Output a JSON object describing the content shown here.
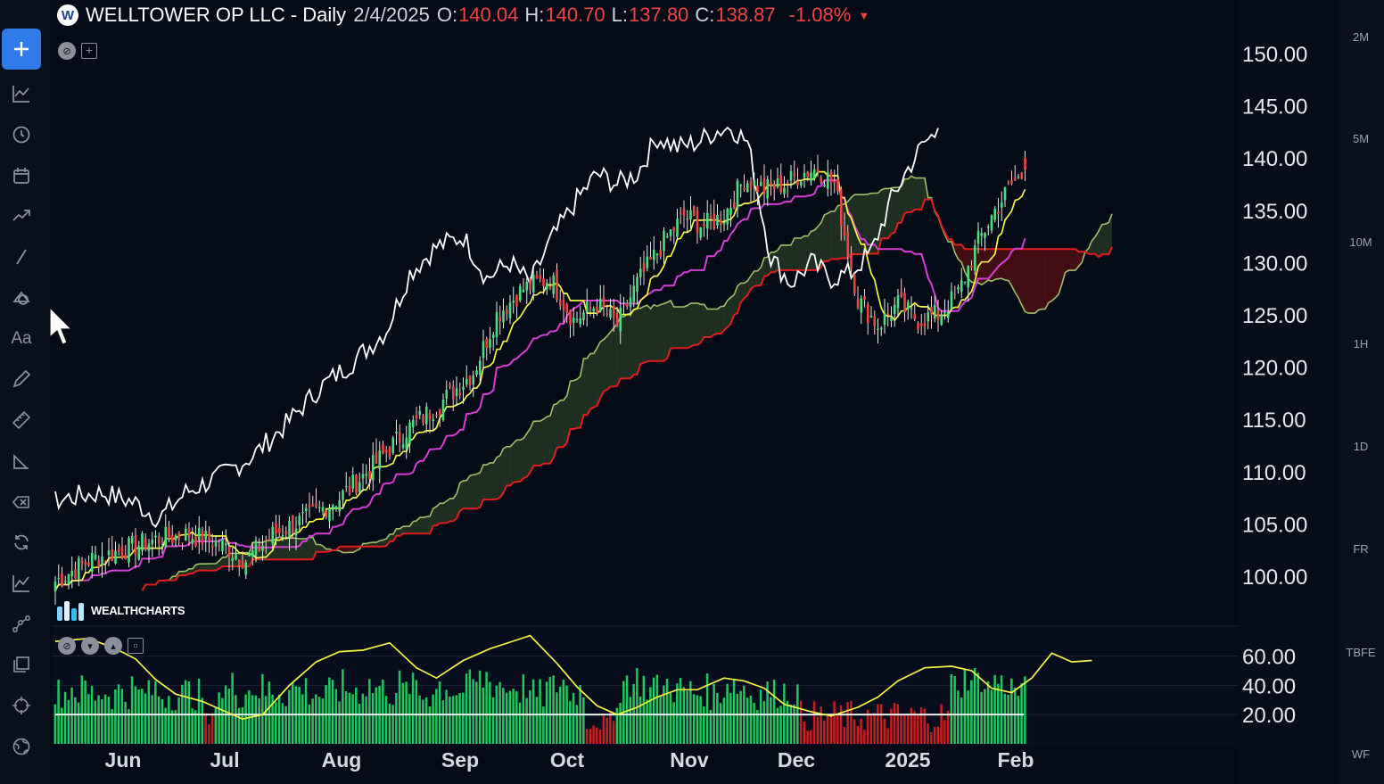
{
  "header": {
    "logo_letter": "W",
    "symbol": "WELLTOWER OP LLC - Daily",
    "date": "2/4/2025",
    "open_label": "O:",
    "open": "140.04",
    "high_label": "H:",
    "high": "140.70",
    "low_label": "L:",
    "low": "137.80",
    "close_label": "C:",
    "close": "138.87",
    "change": "-1.08%",
    "down_color": "#ef4444"
  },
  "toolbar": {
    "items": [
      "add",
      "indicators",
      "clock",
      "calendar",
      "trend",
      "line",
      "shapes",
      "text",
      "pencil",
      "ruler",
      "measure",
      "eraser",
      "refresh",
      "line-chart",
      "nodes",
      "layers",
      "crosshair",
      "globe"
    ],
    "text_tool_label": "Aa"
  },
  "watermark": "WEALTHCHARTS",
  "timeframes": [
    "2M",
    "5M",
    "10M",
    "1H",
    "1D",
    "FR",
    "TBFE",
    "WF"
  ],
  "colors": {
    "background": "#050a17",
    "up_candle": "#4ade80",
    "down_candle": "#ef4444",
    "tenkan": "#f5f542",
    "kijun": "#d63cd6",
    "chikou": "#ffffff",
    "span_a": "#9fbf6a",
    "span_b": "#e11d1d",
    "cloud_bull": "#223322",
    "cloud_bear": "#4a0d14"
  },
  "chart_data": {
    "type": "candlestick",
    "indicators": [
      "ichimoku",
      "volume-histogram"
    ],
    "price_axis": {
      "labels": [
        "150.00",
        "145.00",
        "140.00",
        "135.00",
        "130.00",
        "125.00",
        "120.00",
        "115.00",
        "110.00",
        "105.00",
        "100.00"
      ],
      "range": [
        95.5,
        151.5
      ]
    },
    "x_axis": {
      "labels": [
        "Jun",
        "Jul",
        "Aug",
        "Sep",
        "Oct",
        "Nov",
        "Dec",
        "2025",
        "Feb"
      ]
    },
    "ohlc_last": {
      "date": "2/4/2025",
      "open": 140.04,
      "high": 140.7,
      "low": 137.8,
      "close": 138.87,
      "change_pct": -1.08
    },
    "close_trend": [
      [
        0,
        99.5
      ],
      [
        10,
        101.5
      ],
      [
        20,
        102.5
      ],
      [
        30,
        103.5
      ],
      [
        40,
        104
      ],
      [
        50,
        103
      ],
      [
        57,
        101.5
      ],
      [
        65,
        104
      ],
      [
        75,
        105.5
      ],
      [
        85,
        107.5
      ],
      [
        95,
        110.5
      ],
      [
        105,
        114
      ],
      [
        115,
        116.5
      ],
      [
        125,
        119.5
      ],
      [
        132,
        125
      ],
      [
        140,
        127.5
      ],
      [
        148,
        128.5
      ],
      [
        155,
        124.5
      ],
      [
        162,
        126
      ],
      [
        168,
        124
      ],
      [
        174,
        128
      ],
      [
        182,
        132
      ],
      [
        188,
        134.5
      ],
      [
        194,
        133.5
      ],
      [
        200,
        134.5
      ],
      [
        206,
        138
      ],
      [
        212,
        137
      ],
      [
        218,
        137.5
      ],
      [
        223,
        138.5
      ],
      [
        228,
        139
      ],
      [
        233,
        137.5
      ],
      [
        240,
        126.5
      ],
      [
        246,
        124
      ],
      [
        252,
        126
      ],
      [
        258,
        124.5
      ],
      [
        264,
        125
      ],
      [
        270,
        127
      ],
      [
        276,
        132
      ],
      [
        281,
        135
      ],
      [
        286,
        137.5
      ],
      [
        290,
        138.5
      ]
    ],
    "lower_panel": {
      "axis_labels": [
        "60.00",
        "40.00",
        "20.00"
      ],
      "range": [
        0,
        78
      ],
      "oscillator": [
        [
          0,
          70
        ],
        [
          10,
          72
        ],
        [
          18,
          65
        ],
        [
          24,
          58
        ],
        [
          30,
          44
        ],
        [
          36,
          34
        ],
        [
          44,
          29
        ],
        [
          50,
          23
        ],
        [
          56,
          17
        ],
        [
          62,
          20
        ],
        [
          70,
          40
        ],
        [
          78,
          56
        ],
        [
          85,
          63
        ],
        [
          92,
          64
        ],
        [
          100,
          69
        ],
        [
          108,
          52
        ],
        [
          114,
          45
        ],
        [
          122,
          57
        ],
        [
          130,
          65
        ],
        [
          138,
          71
        ],
        [
          142,
          74
        ],
        [
          150,
          55
        ],
        [
          156,
          39
        ],
        [
          162,
          26
        ],
        [
          168,
          20
        ],
        [
          174,
          25
        ],
        [
          180,
          32
        ],
        [
          186,
          37
        ],
        [
          192,
          37
        ],
        [
          200,
          45
        ],
        [
          206,
          43
        ],
        [
          212,
          38
        ],
        [
          218,
          27
        ],
        [
          226,
          22
        ],
        [
          232,
          19
        ],
        [
          240,
          25
        ],
        [
          246,
          32
        ],
        [
          252,
          43
        ],
        [
          260,
          52
        ],
        [
          268,
          53
        ],
        [
          274,
          50
        ],
        [
          280,
          38
        ],
        [
          286,
          35
        ],
        [
          292,
          45
        ],
        [
          298,
          62
        ],
        [
          304,
          56
        ],
        [
          310,
          57
        ]
      ]
    }
  }
}
